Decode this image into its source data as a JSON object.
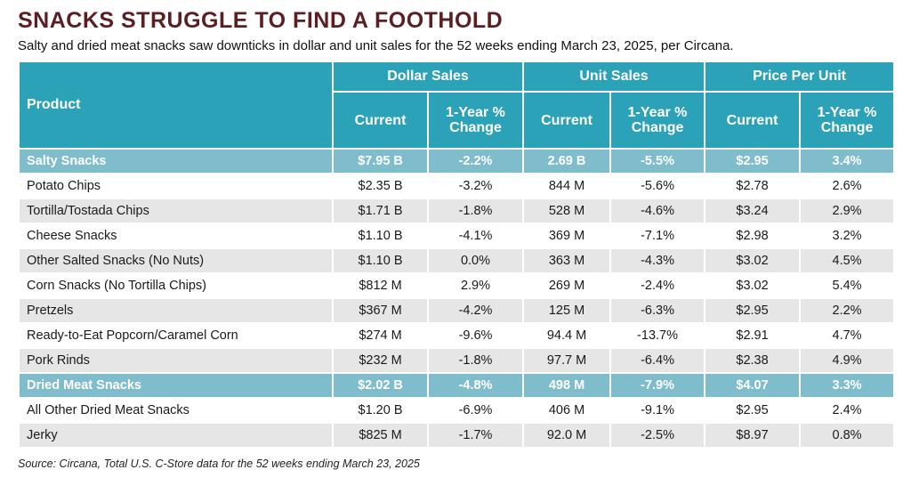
{
  "title": "SNACKS STRUGGLE TO FIND A FOOTHOLD",
  "subtitle": "Salty and dried meat snacks saw downticks in dollar and unit sales for the 52 weeks ending March 23, 2025, per Circana.",
  "source": "Source: Circana, Total U.S. C-Store data for the 52 weeks ending March 23, 2025",
  "header": {
    "product": "Product",
    "groups": [
      "Dollar Sales",
      "Unit Sales",
      "Price Per Unit"
    ],
    "current": "Current",
    "change_line1": "1-Year %",
    "change_line2": "Change"
  },
  "colors": {
    "title": "#5b1f23",
    "header_bg": "#2ca2b8",
    "category_bg": "#7fbdcc",
    "stripe": "#e6e6e6"
  },
  "chart_data": {
    "type": "table",
    "title": "SNACKS STRUGGLE TO FIND A FOOTHOLD",
    "columns": [
      "Product",
      "Dollar Sales Current",
      "Dollar Sales 1-Year % Change",
      "Unit Sales Current",
      "Unit Sales 1-Year % Change",
      "Price Per Unit Current",
      "Price Per Unit 1-Year % Change"
    ],
    "rows": [
      {
        "product": "Salty Snacks",
        "category": true,
        "dollar": "$7.95 B",
        "dollar_chg": "-2.2%",
        "units": "2.69 B",
        "units_chg": "-5.5%",
        "ppu": "$2.95",
        "ppu_chg": "3.4%"
      },
      {
        "product": "Potato Chips",
        "category": false,
        "dollar": "$2.35 B",
        "dollar_chg": "-3.2%",
        "units": "844 M",
        "units_chg": "-5.6%",
        "ppu": "$2.78",
        "ppu_chg": "2.6%"
      },
      {
        "product": "Tortilla/Tostada Chips",
        "category": false,
        "dollar": "$1.71 B",
        "dollar_chg": "-1.8%",
        "units": "528 M",
        "units_chg": "-4.6%",
        "ppu": "$3.24",
        "ppu_chg": "2.9%"
      },
      {
        "product": "Cheese Snacks",
        "category": false,
        "dollar": "$1.10 B",
        "dollar_chg": "-4.1%",
        "units": "369 M",
        "units_chg": "-7.1%",
        "ppu": "$2.98",
        "ppu_chg": "3.2%"
      },
      {
        "product": "Other Salted Snacks (No Nuts)",
        "category": false,
        "dollar": "$1.10 B",
        "dollar_chg": "0.0%",
        "units": "363 M",
        "units_chg": "-4.3%",
        "ppu": "$3.02",
        "ppu_chg": "4.5%"
      },
      {
        "product": "Corn Snacks (No Tortilla Chips)",
        "category": false,
        "dollar": "$812 M",
        "dollar_chg": "2.9%",
        "units": "269 M",
        "units_chg": "-2.4%",
        "ppu": "$3.02",
        "ppu_chg": "5.4%"
      },
      {
        "product": "Pretzels",
        "category": false,
        "dollar": "$367 M",
        "dollar_chg": "-4.2%",
        "units": "125 M",
        "units_chg": "-6.3%",
        "ppu": "$2.95",
        "ppu_chg": "2.2%"
      },
      {
        "product": "Ready-to-Eat Popcorn/Caramel Corn",
        "category": false,
        "dollar": "$274 M",
        "dollar_chg": "-9.6%",
        "units": "94.4 M",
        "units_chg": "-13.7%",
        "ppu": "$2.91",
        "ppu_chg": "4.7%"
      },
      {
        "product": "Pork Rinds",
        "category": false,
        "dollar": "$232 M",
        "dollar_chg": "-1.8%",
        "units": "97.7 M",
        "units_chg": "-6.4%",
        "ppu": "$2.38",
        "ppu_chg": "4.9%"
      },
      {
        "product": "Dried Meat Snacks",
        "category": true,
        "dollar": "$2.02 B",
        "dollar_chg": "-4.8%",
        "units": "498 M",
        "units_chg": "-7.9%",
        "ppu": "$4.07",
        "ppu_chg": "3.3%"
      },
      {
        "product": "All Other Dried Meat Snacks",
        "category": false,
        "dollar": "$1.20 B",
        "dollar_chg": "-6.9%",
        "units": "406 M",
        "units_chg": "-9.1%",
        "ppu": "$2.95",
        "ppu_chg": "2.4%"
      },
      {
        "product": "Jerky",
        "category": false,
        "dollar": "$825 M",
        "dollar_chg": "-1.7%",
        "units": "92.0 M",
        "units_chg": "-2.5%",
        "ppu": "$8.97",
        "ppu_chg": "0.8%"
      }
    ]
  }
}
